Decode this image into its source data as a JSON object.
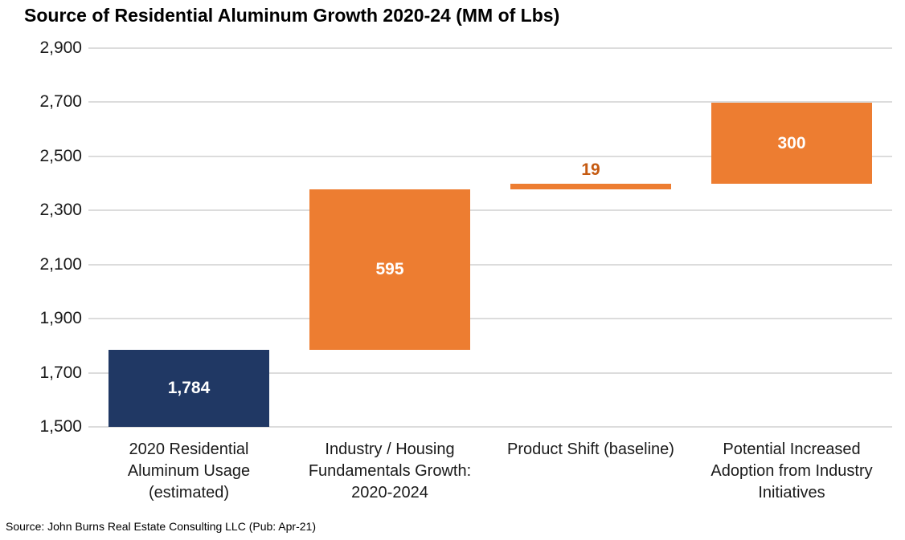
{
  "page": {
    "title": "Source of Residential Aluminum Growth 2020-24 (MM of Lbs)",
    "source_note": "Source: John Burns Real Estate Consulting LLC (Pub: Apr-21)"
  },
  "colors": {
    "navy_bar": "#203864",
    "orange_bar": "#ED7D31",
    "small_bar_label": "#C55A11",
    "value_label_light": "#FFFFFF",
    "gridline": "#DCDCDC",
    "axis_text": "#1A1A1A",
    "background": "#FFFFFF"
  },
  "chart_data": {
    "type": "bar",
    "subtype": "waterfall",
    "title": "Source of Residential Aluminum Growth 2020-24 (MM of Lbs)",
    "xlabel": "",
    "ylabel": "",
    "ylim": [
      1500,
      2900
    ],
    "ytick_step": 200,
    "grid": true,
    "legend": false,
    "yticks": [
      {
        "value": 2900,
        "label": "2,900"
      },
      {
        "value": 2700,
        "label": "2,700"
      },
      {
        "value": 2500,
        "label": "2,500"
      },
      {
        "value": 2300,
        "label": "2,300"
      },
      {
        "value": 2100,
        "label": "2,100"
      },
      {
        "value": 1900,
        "label": "1,900"
      },
      {
        "value": 1700,
        "label": "1,700"
      },
      {
        "value": 1500,
        "label": "1,500"
      }
    ],
    "categories": [
      "2020 Residential Aluminum Usage (estimated)",
      "Industry / Housing Fundamentals Growth: 2020-2024",
      "Product Shift (baseline)",
      "Potential Increased Adoption from Industry Initiatives"
    ],
    "bars": [
      {
        "category_lines": [
          "2020 Residential",
          "Aluminum Usage",
          "(estimated)"
        ],
        "value": 1784,
        "label": "1,784",
        "start": 0,
        "end": 1784,
        "color": "#203864",
        "label_color": "#FFFFFF",
        "label_position": "inside"
      },
      {
        "category_lines": [
          "Industry / Housing",
          "Fundamentals Growth:",
          "2020-2024"
        ],
        "value": 595,
        "label": "595",
        "start": 1784,
        "end": 2379,
        "color": "#ED7D31",
        "label_color": "#FFFFFF",
        "label_position": "inside"
      },
      {
        "category_lines": [
          "Product Shift (baseline)"
        ],
        "value": 19,
        "label": "19",
        "start": 2379,
        "end": 2398,
        "color": "#ED7D31",
        "label_color": "#C55A11",
        "label_position": "above"
      },
      {
        "category_lines": [
          "Potential Increased",
          "Adoption from Industry",
          "Initiatives"
        ],
        "value": 300,
        "label": "300",
        "start": 2398,
        "end": 2698,
        "color": "#ED7D31",
        "label_color": "#FFFFFF",
        "label_position": "inside"
      }
    ]
  }
}
